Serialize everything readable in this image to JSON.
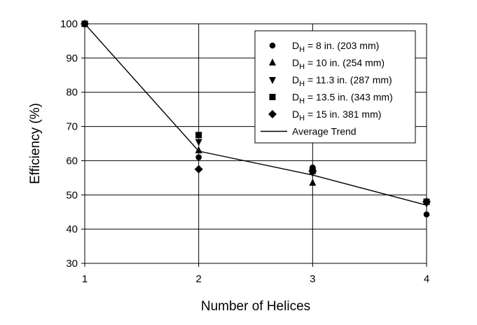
{
  "chart_data": {
    "type": "scatter",
    "title": "",
    "xlabel": "Number of Helices",
    "ylabel": "Efficiency (%)",
    "xlim": [
      1,
      4
    ],
    "ylim": [
      30,
      100
    ],
    "xticks": [
      1,
      2,
      3,
      4
    ],
    "yticks": [
      30,
      40,
      50,
      60,
      70,
      80,
      90,
      100
    ],
    "grid": true,
    "legend_position": "top-right",
    "series": [
      {
        "name_prefix": "D",
        "name_sub": "H",
        "name_rest": " = 8 in. (203 mm)",
        "marker": "circle",
        "x": [
          1,
          2,
          3,
          4
        ],
        "y": [
          100,
          61,
          58,
          44.3
        ]
      },
      {
        "name_prefix": "D",
        "name_sub": "H",
        "name_rest": " = 10 in. (254 mm)",
        "marker": "triangle-up",
        "x": [
          1,
          2,
          3,
          4
        ],
        "y": [
          100,
          63,
          53.5,
          48
        ]
      },
      {
        "name_prefix": "D",
        "name_sub": "H",
        "name_rest": " = 11.3 in. (287 mm)",
        "marker": "triangle-down",
        "x": [
          1,
          2,
          3,
          4
        ],
        "y": [
          100,
          65.5,
          56.5,
          47.5
        ]
      },
      {
        "name_prefix": "D",
        "name_sub": "H",
        "name_rest": " = 13.5 in. (343 mm)",
        "marker": "square",
        "x": [
          1,
          2,
          3,
          4
        ],
        "y": [
          100,
          67.5,
          57,
          48
        ]
      },
      {
        "name_prefix": "D",
        "name_sub": "H",
        "name_rest": " = 15 in. 381 mm)",
        "marker": "diamond",
        "x": [
          1,
          2,
          3,
          4
        ],
        "y": [
          100,
          57.5,
          57,
          48
        ]
      }
    ],
    "trend": {
      "name": "Average Trend",
      "x": [
        1,
        2,
        3,
        4
      ],
      "y": [
        100,
        62.8,
        55.8,
        47
      ]
    }
  }
}
